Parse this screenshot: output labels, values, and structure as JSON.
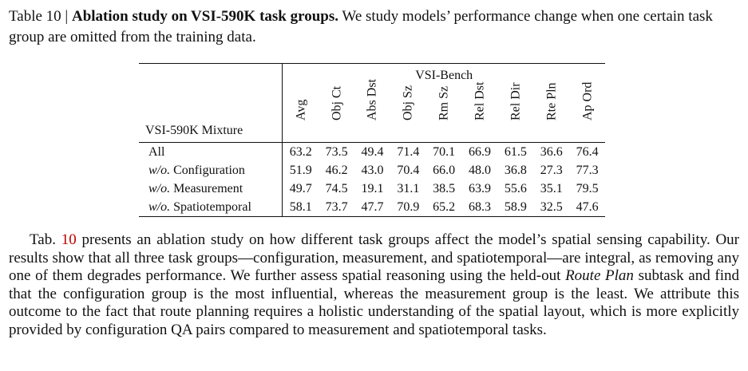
{
  "caption": {
    "prefix": "Table 10 | ",
    "title": "Ablation study on VSI-590K task groups.",
    "text": " We study models’ performance change when one certain task group are omitted from the training data."
  },
  "table": {
    "group_header": "VSI-Bench",
    "row_header": "VSI-590K Mixture",
    "columns": [
      "Avg",
      "Obj Ct",
      "Abs Dst",
      "Obj Sz",
      "Rm Sz",
      "Rel Dst",
      "Rel Dir",
      "Rte Pln",
      "Ap Ord"
    ],
    "rows": [
      {
        "prefix": "",
        "label": "All",
        "values": [
          "63.2",
          "73.5",
          "49.4",
          "71.4",
          "70.1",
          "66.9",
          "61.5",
          "36.6",
          "76.4"
        ]
      },
      {
        "prefix": "w/o.",
        "label": " Configuration",
        "values": [
          "51.9",
          "46.2",
          "43.0",
          "70.4",
          "66.0",
          "48.0",
          "36.8",
          "27.3",
          "77.3"
        ]
      },
      {
        "prefix": "w/o.",
        "label": " Measurement",
        "values": [
          "49.7",
          "74.5",
          "19.1",
          "31.1",
          "38.5",
          "63.9",
          "55.6",
          "35.1",
          "79.5"
        ]
      },
      {
        "prefix": "w/o.",
        "label": " Spatiotemporal",
        "values": [
          "58.1",
          "73.7",
          "47.7",
          "70.9",
          "65.2",
          "68.3",
          "58.9",
          "32.5",
          "47.6"
        ]
      }
    ]
  },
  "paragraph": {
    "lead": "Tab. ",
    "ref": "10",
    "part1": " presents an ablation study on how different task groups affect the model’s spatial sensing capability. Our results show that all three task groups—configuration, measurement, and spatiotemporal—are integral, as removing any one of them degrades performance. We further assess spatial reasoning using the held-out ",
    "italic": "Route Plan",
    "part2": " subtask and find that the configuration group is the most influential, whereas the measurement group is the least. We attribute this outcome to the fact that route planning requires a holistic understanding of the spatial layout, which is more explicitly provided by configuration QA pairs compared to measurement and spatiotemporal tasks."
  }
}
